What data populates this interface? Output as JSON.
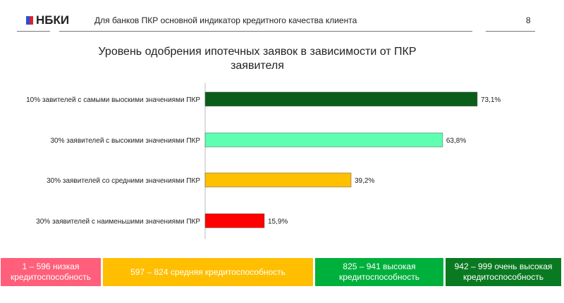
{
  "header": {
    "logo": "НБКИ",
    "title": "Для банков ПКР основной индикатор кредитного качества клиента",
    "page": "8"
  },
  "chart_data": {
    "type": "bar",
    "orientation": "horizontal",
    "title": "Уровень одобрения ипотечных заявок в зависимости от ПКР заявителя",
    "categories": [
      "10% завителей с самыми выоскими значениями ПКР",
      "30% заявителей с высокими значениями ПКР",
      "30% заявителей со средними значениями ПКР",
      "30% заявителей с наименьшими значениями ПКР"
    ],
    "values": [
      73.1,
      63.8,
      39.2,
      15.9
    ],
    "labels": [
      "73,1%",
      "63,8%",
      "39,2%",
      "15,9%"
    ],
    "colors": [
      "#0b5e1a",
      "#5effb0",
      "#ffc000",
      "#ff0000"
    ],
    "xlim": [
      0,
      100
    ],
    "grid": false
  },
  "legend": [
    {
      "text": "1 – 596 низкая кредитоспособность",
      "color": "#ff5f7a"
    },
    {
      "text": "597 – 824 средняя кредитоспособность",
      "color": "#ffbe00"
    },
    {
      "text": "825 – 941 высокая кредитоспособность",
      "color": "#00b03c"
    },
    {
      "text": "942 – 999 очень высокая кредитоспособность",
      "color": "#0a7a22"
    }
  ]
}
